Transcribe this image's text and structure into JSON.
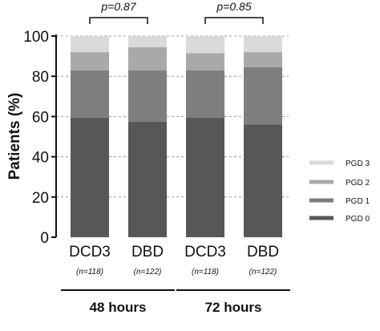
{
  "chart_data": {
    "type": "bar",
    "stacked": true,
    "title": "",
    "ylabel": "Patients (%)",
    "ylim": [
      0,
      100
    ],
    "yticks": [
      0,
      20,
      40,
      60,
      80,
      100
    ],
    "grid": true,
    "legend_position": "right",
    "categories": [
      "DCD3",
      "DBD",
      "DCD3",
      "DBD"
    ],
    "sample_sizes": [
      "(n=118)",
      "(n=122)",
      "(n=118)",
      "(n=122)"
    ],
    "groups": [
      {
        "label": "48 hours",
        "p_value": "p=0.87"
      },
      {
        "label": "72 hours",
        "p_value": "p=0.85"
      }
    ],
    "series": [
      {
        "name": "PGD 0",
        "color": "#575757",
        "values": [
          59.5,
          57.5,
          59.5,
          56
        ]
      },
      {
        "name": "PGD 1",
        "color": "#7e7e7e",
        "values": [
          23.5,
          25.5,
          23.5,
          28.5
        ]
      },
      {
        "name": "PGD 2",
        "color": "#a9a9a9",
        "values": [
          9,
          11.5,
          8.5,
          7.5
        ]
      },
      {
        "name": "PGD 3",
        "color": "#dadada",
        "values": [
          8,
          5.5,
          8.5,
          8
        ]
      }
    ]
  }
}
